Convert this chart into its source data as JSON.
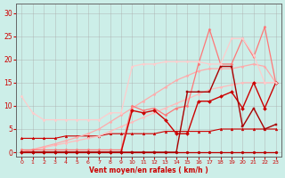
{
  "background_color": "#cceee8",
  "grid_color": "#aaaaaa",
  "xlabel": "Vent moyen/en rafales ( km/h )",
  "xlabel_color": "#cc0000",
  "tick_color": "#cc0000",
  "x_ticks": [
    0,
    1,
    2,
    3,
    4,
    5,
    6,
    7,
    8,
    9,
    10,
    11,
    12,
    13,
    14,
    15,
    16,
    17,
    18,
    19,
    20,
    21,
    22,
    23
  ],
  "ylim": [
    -1,
    32
  ],
  "xlim": [
    -0.5,
    23.5
  ],
  "yticks": [
    0,
    5,
    10,
    15,
    20,
    25,
    30
  ],
  "series": [
    {
      "x": [
        0,
        1,
        2,
        3,
        4,
        5,
        6,
        7,
        8,
        9,
        10,
        11,
        12,
        13,
        14,
        15,
        16,
        17,
        18,
        19,
        20,
        21,
        22,
        23
      ],
      "y": [
        0,
        0,
        0,
        0,
        0,
        0,
        0,
        0,
        0,
        0,
        0,
        0,
        0,
        0,
        0,
        0,
        0,
        0,
        0,
        0,
        0,
        0,
        0,
        0
      ],
      "color": "#990000",
      "linewidth": 0.8,
      "marker": "D",
      "markersize": 1.5
    },
    {
      "x": [
        0,
        1,
        2,
        3,
        4,
        5,
        6,
        7,
        8,
        9,
        10,
        11,
        12,
        13,
        14,
        15,
        16,
        17,
        18,
        19,
        20,
        21,
        22,
        23
      ],
      "y": [
        0,
        0,
        0,
        0,
        0,
        0,
        0,
        0,
        0,
        0,
        0,
        0,
        0,
        0,
        0,
        0,
        0,
        0,
        0,
        0,
        0,
        0,
        0,
        0
      ],
      "color": "#cc2222",
      "linewidth": 0.8,
      "marker": "D",
      "markersize": 1.5
    },
    {
      "x": [
        0,
        1,
        2,
        3,
        4,
        5,
        6,
        7,
        8,
        9,
        10,
        11,
        12,
        13,
        14,
        15,
        16,
        17,
        18,
        19,
        20,
        21,
        22,
        23
      ],
      "y": [
        0,
        0,
        0,
        0,
        0,
        0,
        0,
        0,
        0,
        0,
        0,
        0,
        0,
        0,
        0,
        0,
        0,
        0,
        0,
        0,
        0,
        0,
        0,
        0
      ],
      "color": "#bb0000",
      "linewidth": 0.8,
      "marker": "D",
      "markersize": 1.5
    },
    {
      "x": [
        0,
        1,
        2,
        3,
        4,
        5,
        6,
        7,
        8,
        9,
        10,
        11,
        12,
        13,
        14,
        15,
        16,
        17,
        18,
        19,
        20,
        21,
        22,
        23
      ],
      "y": [
        3,
        3,
        3,
        3,
        3.5,
        3.5,
        3.5,
        3.5,
        4,
        4,
        4,
        4,
        4,
        4.5,
        4.5,
        4.5,
        4.5,
        4.5,
        5,
        5,
        5,
        5,
        5,
        5
      ],
      "color": "#cc0000",
      "linewidth": 0.8,
      "marker": "^",
      "markersize": 2
    },
    {
      "x": [
        0,
        1,
        2,
        3,
        4,
        5,
        6,
        7,
        8,
        9,
        10,
        11,
        12,
        13,
        14,
        15,
        16,
        17,
        18,
        19,
        20,
        21,
        22,
        23
      ],
      "y": [
        0,
        0.5,
        1,
        1.5,
        2,
        2.5,
        3,
        3.5,
        4.5,
        5.5,
        6.5,
        7.5,
        8.5,
        9.5,
        10.5,
        11.5,
        12.5,
        13.5,
        14,
        14.5,
        15,
        15,
        15,
        15
      ],
      "color": "#ffbbbb",
      "linewidth": 0.9,
      "marker": "D",
      "markersize": 1.5
    },
    {
      "x": [
        0,
        1,
        2,
        3,
        4,
        5,
        6,
        7,
        8,
        9,
        10,
        11,
        12,
        13,
        14,
        15,
        16,
        17,
        18,
        19,
        20,
        21,
        22,
        23
      ],
      "y": [
        0,
        0.6,
        1.2,
        1.8,
        2.5,
        3.2,
        4,
        5,
        6.5,
        8,
        9.5,
        11,
        12.5,
        14,
        15.5,
        16.5,
        17.5,
        18,
        18,
        18,
        18.5,
        19,
        18.5,
        15
      ],
      "color": "#ffaaaa",
      "linewidth": 0.9,
      "marker": "D",
      "markersize": 1.5
    },
    {
      "x": [
        0,
        1,
        2,
        3,
        4,
        5,
        6,
        7,
        8,
        9,
        10,
        11,
        12,
        13,
        14,
        15,
        16,
        17,
        18,
        19,
        20,
        21,
        22,
        23
      ],
      "y": [
        0.5,
        0.5,
        0.5,
        0.5,
        0.5,
        0.5,
        0.5,
        0.5,
        0.5,
        0.5,
        10,
        9,
        9.5,
        8,
        9.5,
        10,
        19,
        26.5,
        19,
        19,
        24.5,
        20.5,
        27,
        15
      ],
      "color": "#ff7777",
      "linewidth": 0.9,
      "marker": "D",
      "markersize": 1.5
    },
    {
      "x": [
        0,
        1,
        2,
        3,
        4,
        5,
        6,
        7,
        8,
        9,
        10,
        11,
        12,
        13,
        14,
        15,
        16,
        17,
        18,
        19,
        20,
        21,
        22,
        23
      ],
      "y": [
        0,
        0,
        0,
        0,
        0,
        0,
        0,
        0,
        0,
        0,
        9,
        8.5,
        9,
        7,
        4,
        4,
        11,
        11,
        12,
        13,
        9.5,
        15,
        9.5,
        15
      ],
      "color": "#cc0000",
      "linewidth": 1.0,
      "marker": "D",
      "markersize": 2
    },
    {
      "x": [
        0,
        1,
        2,
        3,
        4,
        5,
        6,
        7,
        8,
        9,
        10,
        11,
        12,
        13,
        14,
        15,
        16,
        17,
        18,
        19,
        20,
        21,
        22,
        23
      ],
      "y": [
        0,
        0,
        0,
        0,
        0,
        0,
        0,
        0,
        0,
        0,
        0,
        0,
        0,
        0,
        0,
        13,
        13,
        13,
        18.5,
        18.5,
        5.5,
        9.5,
        5,
        6
      ],
      "color": "#aa0000",
      "linewidth": 1.0,
      "marker": "s",
      "markersize": 2
    },
    {
      "x": [
        0,
        1,
        2,
        3,
        4,
        5,
        6,
        7,
        8,
        9,
        10,
        11,
        12,
        13,
        14,
        15,
        16,
        17,
        18,
        19,
        20,
        21,
        22,
        23
      ],
      "y": [
        12,
        8.5,
        7,
        7,
        7,
        7,
        7,
        7,
        8.5,
        8.5,
        18.5,
        19,
        19,
        19.5,
        19.5,
        19.5,
        19.5,
        19,
        19,
        24.5,
        24.5,
        21,
        15,
        15
      ],
      "color": "#ffcccc",
      "linewidth": 0.9,
      "marker": "D",
      "markersize": 1.5
    }
  ]
}
